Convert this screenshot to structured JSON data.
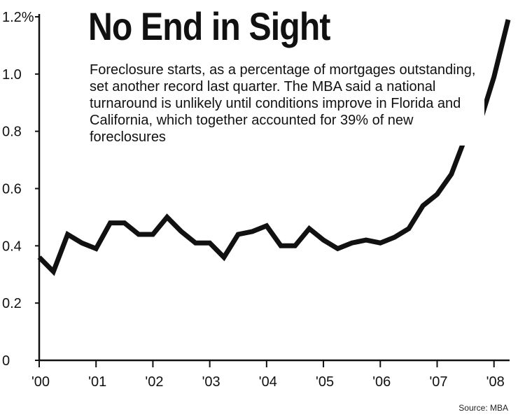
{
  "chart_data": {
    "type": "line",
    "title": "No End in Sight",
    "subtitle": "Foreclosure starts, as a percentage of mortgages outstanding, set another record last quarter. The MBA said a national turnaround is unlikely until conditions improve in Florida and California, which together accounted for 39% of new foreclosures",
    "source": "Source: MBA",
    "xlabel": "",
    "ylabel": "",
    "ylim": [
      0,
      1.2
    ],
    "y_ticks": [
      {
        "value": 0,
        "label": "0"
      },
      {
        "value": 0.2,
        "label": "0.2"
      },
      {
        "value": 0.4,
        "label": "0.4"
      },
      {
        "value": 0.6,
        "label": "0.6"
      },
      {
        "value": 0.8,
        "label": "0.8"
      },
      {
        "value": 1.0,
        "label": "1.0"
      },
      {
        "value": 1.2,
        "label": "1.2%"
      }
    ],
    "x_ticks": [
      {
        "value": 2000,
        "label": "'00"
      },
      {
        "value": 2001,
        "label": "'01"
      },
      {
        "value": 2002,
        "label": "'02"
      },
      {
        "value": 2003,
        "label": "'03"
      },
      {
        "value": 2004,
        "label": "'04"
      },
      {
        "value": 2005,
        "label": "'05"
      },
      {
        "value": 2006,
        "label": "'06"
      },
      {
        "value": 2007,
        "label": "'07"
      },
      {
        "value": 2008,
        "label": "'08"
      }
    ],
    "grid": false,
    "series": [
      {
        "name": "",
        "color": "#111111",
        "x": [
          2000.0,
          2000.25,
          2000.5,
          2000.75,
          2001.0,
          2001.25,
          2001.5,
          2001.75,
          2002.0,
          2002.25,
          2002.5,
          2002.75,
          2003.0,
          2003.25,
          2003.5,
          2003.75,
          2004.0,
          2004.25,
          2004.5,
          2004.75,
          2005.0,
          2005.25,
          2005.5,
          2005.75,
          2006.0,
          2006.25,
          2006.5,
          2006.75,
          2007.0,
          2007.25,
          2007.5,
          2007.75,
          2008.0,
          2008.25
        ],
        "values": [
          0.36,
          0.31,
          0.44,
          0.41,
          0.39,
          0.48,
          0.48,
          0.44,
          0.44,
          0.5,
          0.45,
          0.41,
          0.41,
          0.36,
          0.44,
          0.45,
          0.47,
          0.4,
          0.4,
          0.46,
          0.42,
          0.39,
          0.41,
          0.42,
          0.41,
          0.43,
          0.46,
          0.54,
          0.58,
          0.65,
          0.78,
          0.83,
          0.99,
          1.19
        ]
      }
    ]
  }
}
